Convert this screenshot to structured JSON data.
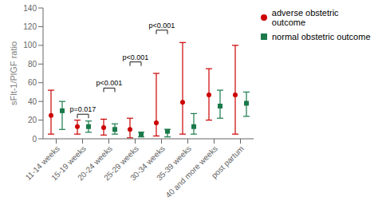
{
  "chart_data": {
    "type": "scatter",
    "ylabel": "sFlt-1/PlGF ratio",
    "ylim": [
      0,
      140
    ],
    "yticks": [
      0,
      20,
      40,
      60,
      80,
      100,
      120,
      140
    ],
    "categories": [
      "11-14 weeks",
      "15-19 weeks",
      "20-24 weeks",
      "25-29 weeks",
      "30-34 weeks",
      "35-39 weeks",
      "40 and more  weeks",
      "post partum"
    ],
    "series": [
      {
        "name": "adverse obstetric outcome",
        "color": "#cc0000",
        "marker": "circle",
        "values": [
          25,
          13,
          12,
          10,
          17,
          39,
          47,
          47
        ],
        "low": [
          5,
          5,
          4,
          1,
          3,
          5,
          20,
          5
        ],
        "high": [
          52,
          20,
          21,
          22,
          70,
          103,
          75,
          100
        ]
      },
      {
        "name": "normal obstetric outcome",
        "color": "#1a7a4a",
        "marker": "square",
        "values": [
          30,
          13,
          10,
          5,
          8,
          13,
          35,
          38
        ],
        "low": [
          10,
          7,
          5,
          2,
          2,
          5,
          22,
          24
        ],
        "high": [
          40,
          19,
          16,
          7,
          10,
          27,
          52,
          50
        ]
      }
    ],
    "annotations": [
      {
        "category": "15-19 weeks",
        "y": 22,
        "label": "p=0.017"
      },
      {
        "category": "20-24 weeks",
        "y": 50,
        "label": "p<0.001"
      },
      {
        "category": "25-29 weeks",
        "y": 78,
        "label": "p<0.001"
      },
      {
        "category": "30-34 weeks",
        "y": 112,
        "label": "p<0.001"
      }
    ],
    "grid": false,
    "legend": "right"
  }
}
